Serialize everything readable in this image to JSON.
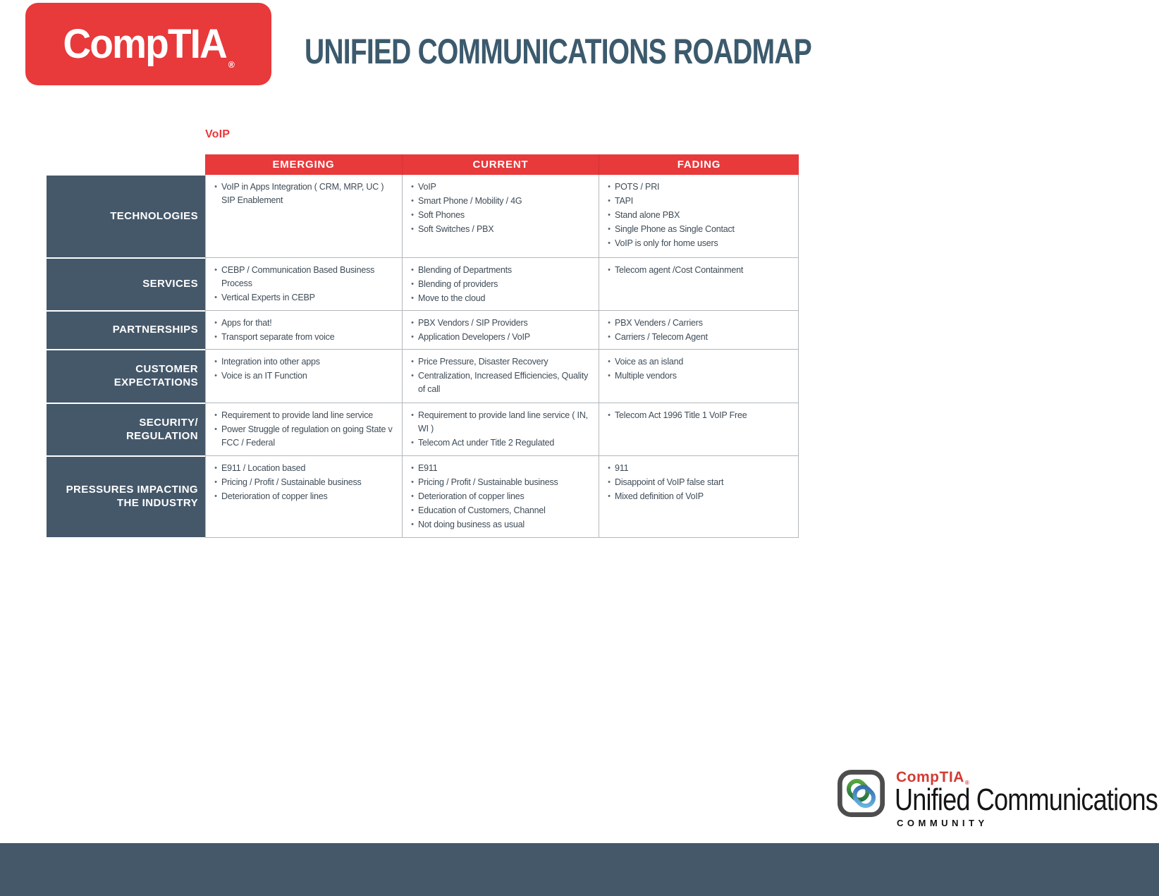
{
  "page": {
    "title": "UNIFIED COMMUNICATIONS ROADMAP"
  },
  "brand": {
    "logo_text": "CompTIA",
    "registered_mark": "®"
  },
  "roadmap": {
    "topic": "VoIP",
    "columns": [
      "EMERGING",
      "CURRENT",
      "FADING"
    ],
    "rows": [
      {
        "label_lines": [
          "TECHNOLOGIES"
        ],
        "cells": [
          [
            "VoIP in Apps Integration  ( CRM, MRP, UC ) SIP Enablement"
          ],
          [
            "VoIP",
            "Smart Phone / Mobility  / 4G",
            "Soft Phones",
            "Soft Switches / PBX"
          ],
          [
            "POTS / PRI",
            "TAPI",
            "Stand alone PBX",
            "Single Phone as Single Contact",
            "VoIP is only for home users"
          ]
        ]
      },
      {
        "label_lines": [
          "SERVICES"
        ],
        "cells": [
          [
            "CEBP / Communication Based Business Process",
            "Vertical Experts  in CEBP"
          ],
          [
            "Blending of Departments",
            "Blending of providers",
            "Move to the cloud"
          ],
          [
            "Telecom agent /Cost Containment"
          ]
        ]
      },
      {
        "label_lines": [
          "PARTNERSHIPS"
        ],
        "cells": [
          [
            "Apps for that!",
            "Transport separate from voice"
          ],
          [
            "PBX Vendors / SIP Providers",
            "Application Developers / VoIP"
          ],
          [
            "PBX Venders / Carriers",
            "Carriers / Telecom Agent"
          ]
        ]
      },
      {
        "label_lines": [
          "CUSTOMER",
          "EXPECTATIONS"
        ],
        "cells": [
          [
            "Integration into other apps",
            "Voice is an IT Function"
          ],
          [
            "Price Pressure, Disaster Recovery",
            "Centralization, Increased  Efficiencies,  Quality of call"
          ],
          [
            "Voice as an island",
            "Multiple vendors"
          ]
        ]
      },
      {
        "label_lines": [
          "SECURITY/",
          "REGULATION"
        ],
        "cells": [
          [
            "Requirement to provide land line service",
            "Power Struggle of regulation on going State v FCC / Federal"
          ],
          [
            "Requirement to provide land line service ( IN, WI )",
            "Telecom Act under Title 2 Regulated"
          ],
          [
            "Telecom Act 1996 Title 1 VoIP Free"
          ]
        ]
      },
      {
        "label_lines": [
          "PRESSURES IMPACTING",
          "THE INDUSTRY"
        ],
        "cells": [
          [
            "E911 / Location based",
            "Pricing / Profit / Sustainable business",
            "Deterioration of copper lines"
          ],
          [
            "E911",
            "Pricing / Profit / Sustainable business",
            "Deterioration of copper lines",
            "Education of Customers, Channel",
            "Not doing business as usual"
          ],
          [
            "911",
            "Disappoint of VoIP false start",
            "Mixed definition of VoIP"
          ]
        ]
      }
    ]
  },
  "footer": {
    "brand": "CompTIA",
    "registered_mark": "®",
    "title": "Unified Communications",
    "subtitle": "COMMUNITY"
  },
  "colors": {
    "brand_red": "#e8393b",
    "slate": "#45586a",
    "title_slate": "#3c5a6d",
    "cell_text": "#3f4c57",
    "border_gray": "#b3b8bc"
  }
}
